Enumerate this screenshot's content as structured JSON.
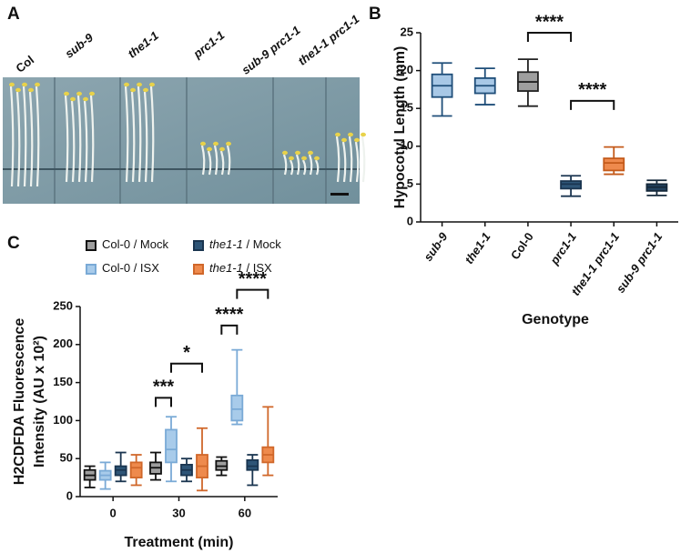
{
  "photo_panel": {
    "panel_label": "A",
    "genotypes": [
      "Col",
      "sub-9",
      "the1-1",
      "prc1-1",
      "sub-9 prc1-1",
      "the1-1 prc1-1"
    ]
  },
  "chart_data": [
    {
      "type": "box",
      "panel_label": "B",
      "ylabel": "Hypocotyl Length (mm)",
      "xlabel": "Genotype",
      "categories": [
        "sub-9",
        "the1-1",
        "Col-0",
        "prc1-1",
        "the1-1 prc1-1",
        "sub-9 prc1-1"
      ],
      "boxes": [
        {
          "min": 14,
          "q1": 16.5,
          "median": 18,
          "q3": 19.5,
          "max": 21
        },
        {
          "min": 15.5,
          "q1": 17,
          "median": 18,
          "q3": 19,
          "max": 20.3
        },
        {
          "min": 15.3,
          "q1": 17.3,
          "median": 18.5,
          "q3": 19.8,
          "max": 21.5
        },
        {
          "min": 3.4,
          "q1": 4.4,
          "median": 5,
          "q3": 5.4,
          "max": 6.1
        },
        {
          "min": 6.3,
          "q1": 6.8,
          "median": 7.8,
          "q3": 8.4,
          "max": 9.9
        },
        {
          "min": 3.5,
          "q1": 4.1,
          "median": 4.6,
          "q3": 5,
          "max": 5.5
        }
      ],
      "colors": [
        "#a8c8e6",
        "#a8c8e6",
        "#9e9e9e",
        "#2e5577",
        "#ee8a4d",
        "#22415e"
      ],
      "edge_colors": [
        "#1f4e79",
        "#1f4e79",
        "#222222",
        "#1a3550",
        "#c45a1a",
        "#15283a"
      ],
      "ylim": [
        0,
        25
      ],
      "yticks": [
        0,
        5,
        10,
        15,
        20,
        25
      ],
      "annotations": [
        {
          "text": "****",
          "from": "Col-0",
          "to": "prc1-1",
          "y": 25
        },
        {
          "text": "****",
          "from": "prc1-1",
          "to": "the1-1 prc1-1",
          "y": 16
        }
      ]
    },
    {
      "type": "box",
      "panel_label": "C",
      "ylabel": [
        "H2CDFDA Fluorescence",
        "Intensity (AU x 10²)"
      ],
      "xlabel": "Treatment (min)",
      "categories": [
        "0",
        "30",
        "60"
      ],
      "series": [
        {
          "name": "Col-0 / Mock",
          "color": "#9e9e9e",
          "edge": "#111111",
          "boxes": [
            {
              "min": 12,
              "q1": 22,
              "median": 28,
              "q3": 35,
              "max": 40
            },
            {
              "min": 22,
              "q1": 30,
              "median": 38,
              "q3": 45,
              "max": 58
            },
            {
              "min": 28,
              "q1": 35,
              "median": 40,
              "q3": 47,
              "max": 52
            }
          ]
        },
        {
          "name": "Col-0 / ISX",
          "color": "#a8cbea",
          "edge": "#7aaad6",
          "boxes": [
            {
              "min": 10,
              "q1": 22,
              "median": 28,
              "q3": 34,
              "max": 45
            },
            {
              "min": 20,
              "q1": 45,
              "median": 62,
              "q3": 88,
              "max": 105
            },
            {
              "min": 95,
              "q1": 100,
              "median": 115,
              "q3": 133,
              "max": 193
            }
          ]
        },
        {
          "name": "the1-1 / Mock",
          "color": "#2e5577",
          "edge": "#1a3550",
          "boxes": [
            {
              "min": 20,
              "q1": 28,
              "median": 35,
              "q3": 40,
              "max": 58
            },
            {
              "min": 20,
              "q1": 28,
              "median": 35,
              "q3": 42,
              "max": 50
            },
            {
              "min": 15,
              "q1": 35,
              "median": 40,
              "q3": 48,
              "max": 55
            }
          ]
        },
        {
          "name": "the1-1 / ISX",
          "color": "#ee8a4d",
          "edge": "#d0672a",
          "boxes": [
            {
              "min": 15,
              "q1": 25,
              "median": 38,
              "q3": 45,
              "max": 55
            },
            {
              "min": 8,
              "q1": 25,
              "median": 40,
              "q3": 55,
              "max": 90
            },
            {
              "min": 28,
              "q1": 45,
              "median": 55,
              "q3": 65,
              "max": 118
            }
          ]
        }
      ],
      "ylim": [
        0,
        250
      ],
      "yticks": [
        0,
        50,
        100,
        150,
        200,
        250
      ],
      "annotations": [
        {
          "text": "***",
          "x": "30",
          "from": "Col-0 / Mock",
          "to": "Col-0 / ISX",
          "y": 130
        },
        {
          "text": "*",
          "x": "30",
          "from": "Col-0 / ISX",
          "to": "the1-1 / ISX",
          "y": 175
        },
        {
          "text": "****",
          "x": "60",
          "from": "Col-0 / Mock",
          "to": "Col-0 / ISX",
          "y": 225
        },
        {
          "text": "****",
          "x": "60",
          "from": "Col-0 / ISX",
          "to": "the1-1 / ISX",
          "y": 272
        }
      ]
    }
  ]
}
